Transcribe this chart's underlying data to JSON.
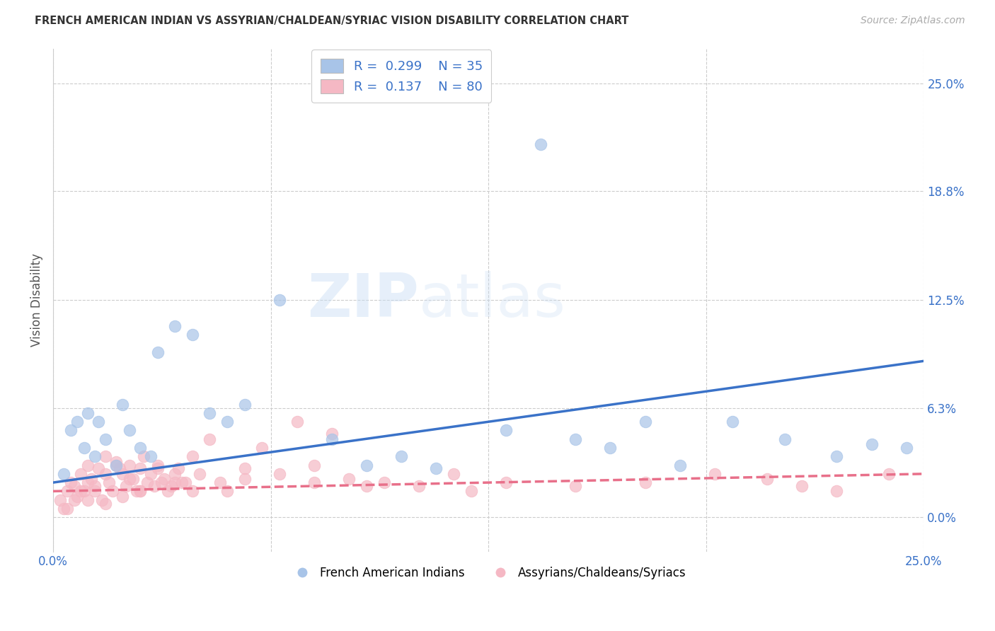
{
  "title": "FRENCH AMERICAN INDIAN VS ASSYRIAN/CHALDEAN/SYRIAC VISION DISABILITY CORRELATION CHART",
  "source": "Source: ZipAtlas.com",
  "ylabel": "Vision Disability",
  "ytick_values": [
    0.0,
    6.3,
    12.5,
    18.8,
    25.0
  ],
  "xlim": [
    0.0,
    25.0
  ],
  "ylim": [
    -2.0,
    27.0
  ],
  "legend_r1": "0.299",
  "legend_n1": "35",
  "legend_r2": "0.137",
  "legend_n2": "80",
  "color_blue": "#A8C4E8",
  "color_pink": "#F5B8C4",
  "line_blue": "#3A72C8",
  "line_pink": "#E8708A",
  "label_blue": "French American Indians",
  "label_pink": "Assyrians/Chaldeans/Syriacs",
  "blue_x": [
    0.3,
    0.5,
    0.7,
    0.9,
    1.0,
    1.2,
    1.3,
    1.5,
    1.8,
    2.0,
    2.2,
    2.5,
    2.8,
    3.0,
    3.5,
    4.0,
    4.5,
    5.0,
    5.5,
    6.5,
    8.0,
    9.0,
    10.0,
    11.0,
    13.0,
    14.0,
    15.0,
    16.0,
    17.0,
    18.0,
    19.5,
    21.0,
    22.5,
    23.5,
    24.5
  ],
  "blue_y": [
    2.5,
    5.0,
    5.5,
    4.0,
    6.0,
    3.5,
    5.5,
    4.5,
    3.0,
    6.5,
    5.0,
    4.0,
    3.5,
    9.5,
    11.0,
    10.5,
    6.0,
    5.5,
    6.5,
    12.5,
    4.5,
    3.0,
    3.5,
    2.8,
    5.0,
    21.5,
    4.5,
    4.0,
    5.5,
    3.0,
    5.5,
    4.5,
    3.5,
    4.2,
    4.0
  ],
  "pink_x": [
    0.2,
    0.3,
    0.4,
    0.5,
    0.6,
    0.7,
    0.8,
    0.9,
    1.0,
    1.0,
    1.1,
    1.2,
    1.3,
    1.4,
    1.5,
    1.5,
    1.6,
    1.7,
    1.8,
    1.9,
    2.0,
    2.0,
    2.1,
    2.2,
    2.3,
    2.4,
    2.5,
    2.5,
    2.6,
    2.7,
    2.8,
    2.9,
    3.0,
    3.1,
    3.2,
    3.3,
    3.4,
    3.5,
    3.6,
    3.7,
    3.8,
    4.0,
    4.2,
    4.5,
    4.8,
    5.0,
    5.5,
    6.0,
    6.5,
    7.0,
    7.5,
    8.0,
    8.5,
    9.5,
    10.5,
    11.5,
    13.0,
    15.0,
    17.0,
    19.0,
    20.5,
    21.5,
    22.5,
    24.0,
    0.4,
    0.6,
    0.8,
    1.0,
    1.2,
    1.5,
    1.8,
    2.2,
    2.5,
    3.0,
    3.5,
    4.0,
    5.5,
    7.5,
    9.0,
    12.0
  ],
  "pink_y": [
    1.0,
    0.5,
    1.5,
    2.0,
    1.8,
    1.2,
    2.5,
    1.5,
    3.0,
    1.0,
    2.2,
    1.5,
    2.8,
    1.0,
    3.5,
    0.8,
    2.0,
    1.5,
    3.2,
    2.8,
    2.5,
    1.2,
    1.8,
    3.0,
    2.2,
    1.5,
    2.8,
    1.5,
    3.5,
    2.0,
    2.5,
    1.8,
    3.0,
    2.0,
    2.2,
    1.5,
    1.8,
    2.5,
    2.8,
    2.0,
    2.0,
    3.5,
    2.5,
    4.5,
    2.0,
    1.5,
    2.8,
    4.0,
    2.5,
    5.5,
    3.0,
    4.8,
    2.2,
    2.0,
    1.8,
    2.5,
    2.0,
    1.8,
    2.0,
    2.5,
    2.2,
    1.8,
    1.5,
    2.5,
    0.5,
    1.0,
    1.5,
    2.0,
    1.8,
    2.5,
    3.0,
    2.2,
    1.5,
    2.8,
    2.0,
    1.5,
    2.2,
    2.0,
    1.8,
    1.5
  ]
}
